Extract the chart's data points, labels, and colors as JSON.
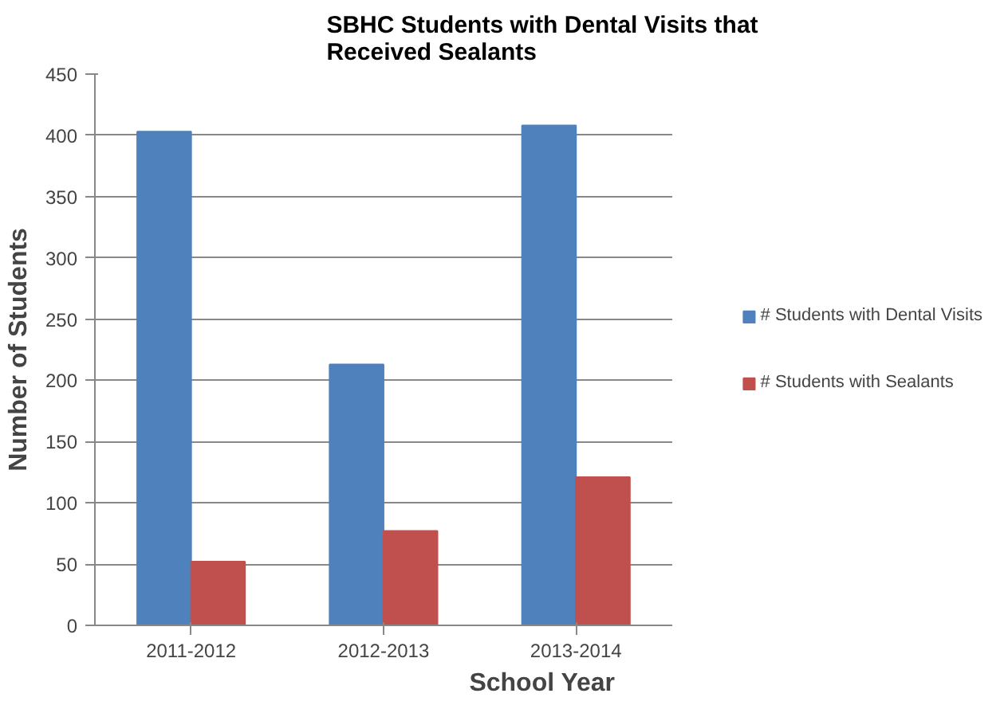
{
  "chart_data": {
    "type": "bar",
    "title": "SBHC Students with Dental Visits that Received Sealants",
    "xlabel": "School Year",
    "ylabel": "Number of Students",
    "categories": [
      "2011-2012",
      "2012-2013",
      "2013-2014"
    ],
    "series": [
      {
        "name": "# Students with Dental Visits",
        "color": "#4f81bd",
        "values": [
          403,
          213,
          408
        ]
      },
      {
        "name": "# Students with Sealants",
        "color": "#c0504d",
        "values": [
          52,
          77,
          121
        ]
      }
    ],
    "ylim": [
      0,
      450
    ],
    "yticks": [
      0,
      50,
      100,
      150,
      200,
      250,
      300,
      350,
      400,
      450
    ],
    "grid": "y",
    "legend": "right"
  }
}
